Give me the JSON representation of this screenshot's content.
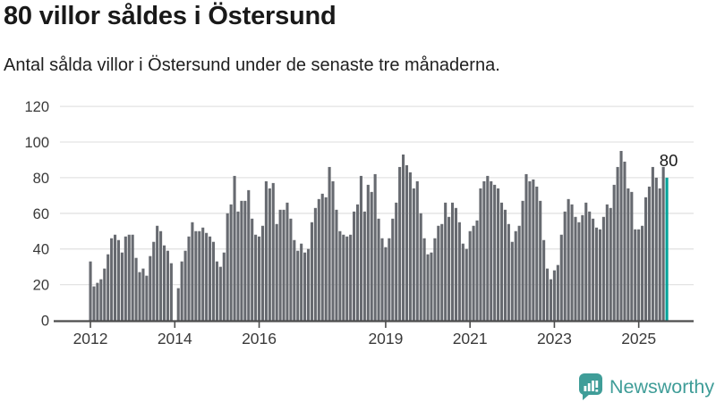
{
  "header": {
    "title": "80 villor såldes i Östersund",
    "subtitle": "Antal sålda villor i Östersund under de senaste tre månaderna."
  },
  "chart_data": {
    "type": "bar",
    "title": "80 villor såldes i Östersund",
    "subtitle": "Antal sålda villor i Östersund under de senaste tre månaderna.",
    "frequency": "monthly",
    "start_month": "2012-01",
    "end_month": "2025-09",
    "values": [
      33,
      19,
      21,
      23,
      29,
      37,
      46,
      48,
      45,
      38,
      47,
      48,
      48,
      35,
      27,
      29,
      25,
      36,
      44,
      53,
      50,
      42,
      39,
      32,
      0,
      18,
      33,
      39,
      47,
      55,
      50,
      50,
      52,
      49,
      47,
      44,
      33,
      30,
      38,
      60,
      65,
      81,
      61,
      67,
      67,
      73,
      57,
      48,
      47,
      53,
      78,
      74,
      77,
      54,
      62,
      62,
      66,
      57,
      45,
      39,
      43,
      38,
      40,
      55,
      63,
      68,
      71,
      69,
      86,
      78,
      62,
      50,
      48,
      47,
      48,
      61,
      65,
      81,
      61,
      76,
      72,
      82,
      57,
      46,
      41,
      46,
      57,
      66,
      86,
      93,
      87,
      83,
      74,
      78,
      60,
      46,
      37,
      38,
      46,
      53,
      54,
      66,
      58,
      66,
      63,
      55,
      43,
      40,
      50,
      53,
      56,
      74,
      78,
      81,
      78,
      76,
      74,
      66,
      62,
      54,
      44,
      50,
      53,
      67,
      82,
      78,
      79,
      75,
      67,
      45,
      29,
      23,
      28,
      31,
      48,
      61,
      68,
      65,
      58,
      55,
      59,
      66,
      61,
      57,
      52,
      51,
      58,
      65,
      63,
      76,
      86,
      95,
      89,
      74,
      72,
      51,
      51,
      53,
      69,
      75,
      86,
      80,
      74,
      86,
      80
    ],
    "missing_months": [
      "2014-01"
    ],
    "highlight_last": true,
    "last_value": 80,
    "annotation_label": "80",
    "ylim": [
      0,
      120
    ],
    "yticks": [
      0,
      20,
      40,
      60,
      80,
      100,
      120
    ],
    "x_tick_labels": [
      {
        "label": "2012",
        "month_index": 0
      },
      {
        "label": "2014",
        "month_index": 24
      },
      {
        "label": "2016",
        "month_index": 48
      },
      {
        "label": "2019",
        "month_index": 84
      },
      {
        "label": "2021",
        "month_index": 108
      },
      {
        "label": "2023",
        "month_index": 132
      },
      {
        "label": "2025",
        "month_index": 156
      }
    ],
    "grid": true,
    "legend": false
  },
  "footer": {
    "brand": "Newsworthy"
  },
  "colors": {
    "bar": "#676a70",
    "accent": "#00a39a",
    "grid": "#e3e3e3",
    "axis": "#4c4c4c",
    "tick_label": "#3a3a3a",
    "annotation": "#191919",
    "brand_teal": "#3f9d98"
  }
}
